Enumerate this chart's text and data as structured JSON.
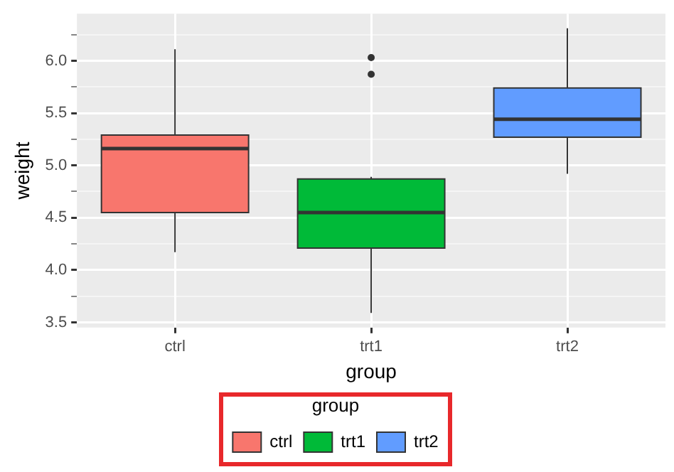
{
  "chart_data": {
    "type": "box",
    "xlabel": "group",
    "ylabel": "weight",
    "legend_title": "group",
    "legend": "bottom",
    "categories": [
      "ctrl",
      "trt1",
      "trt2"
    ],
    "series": [
      {
        "name": "ctrl",
        "color": "#f8766d",
        "boxes": [
          {
            "low": 4.17,
            "q1": 4.55,
            "median": 5.16,
            "q3": 5.29,
            "high": 6.11
          },
          null,
          null
        ]
      },
      {
        "name": "trt1",
        "color": "#00ba38",
        "boxes": [
          null,
          {
            "low": 3.59,
            "q1": 4.21,
            "median": 4.55,
            "q3": 4.87,
            "high": 4.89,
            "outliers": [
              5.87,
              6.03
            ]
          },
          null
        ]
      },
      {
        "name": "trt2",
        "color": "#619cff",
        "boxes": [
          null,
          null,
          {
            "low": 4.92,
            "q1": 5.27,
            "median": 5.44,
            "q3": 5.74,
            "high": 6.31
          }
        ]
      }
    ],
    "ylim": [
      3.45,
      6.45
    ],
    "yticks": [
      3.5,
      {
        "value": 3.75,
        "label": null
      },
      {
        "value": 4,
        "label": "4.0"
      },
      {
        "value": 4.25,
        "label": null
      },
      4.5,
      {
        "value": 4.75,
        "label": null
      },
      {
        "value": 5,
        "label": "5.0"
      },
      {
        "value": 5.25,
        "label": null
      },
      5.5,
      {
        "value": 5.75,
        "label": null
      },
      {
        "value": 6,
        "label": "6.0"
      },
      {
        "value": 6.25,
        "label": null
      }
    ],
    "grid": true
  }
}
